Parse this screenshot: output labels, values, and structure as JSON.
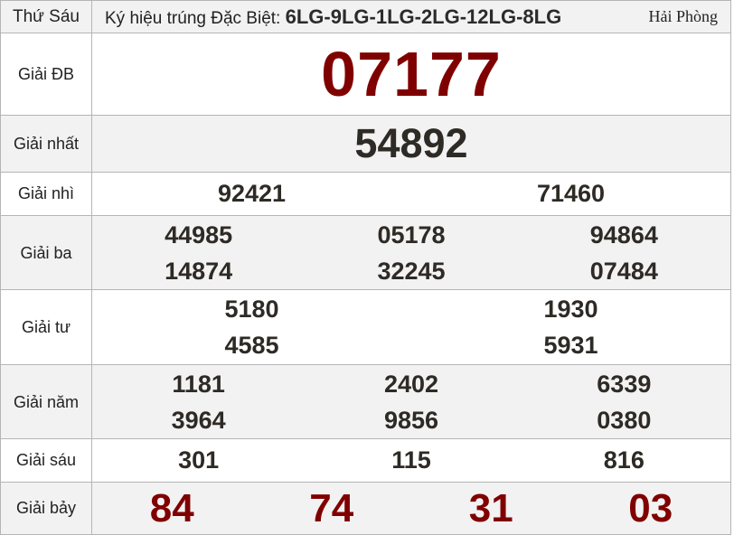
{
  "header": {
    "day": "Thứ Sáu",
    "symbol_label": "Ký hiệu trúng Đặc Biệt:",
    "symbol_value": "6LG-9LG-1LG-2LG-12LG-8LG",
    "province": "Hải Phòng"
  },
  "prizes": {
    "db": {
      "label": "Giải ĐB",
      "values": [
        "07177"
      ]
    },
    "nhat": {
      "label": "Giải nhất",
      "values": [
        "54892"
      ]
    },
    "nhi": {
      "label": "Giải nhì",
      "values": [
        "92421",
        "71460"
      ]
    },
    "ba": {
      "label": "Giải ba",
      "values": [
        "44985",
        "05178",
        "94864",
        "14874",
        "32245",
        "07484"
      ]
    },
    "tu": {
      "label": "Giải tư",
      "values": [
        "5180",
        "1930",
        "4585",
        "5931"
      ]
    },
    "nam": {
      "label": "Giải năm",
      "values": [
        "1181",
        "2402",
        "6339",
        "3964",
        "9856",
        "0380"
      ]
    },
    "sau": {
      "label": "Giải sáu",
      "values": [
        "301",
        "115",
        "816"
      ]
    },
    "bay": {
      "label": "Giải bảy",
      "values": [
        "84",
        "74",
        "31",
        "03"
      ]
    }
  },
  "colors": {
    "special": "#800000",
    "number": "#2e2a25",
    "row_alt": "#f2f2f2"
  }
}
